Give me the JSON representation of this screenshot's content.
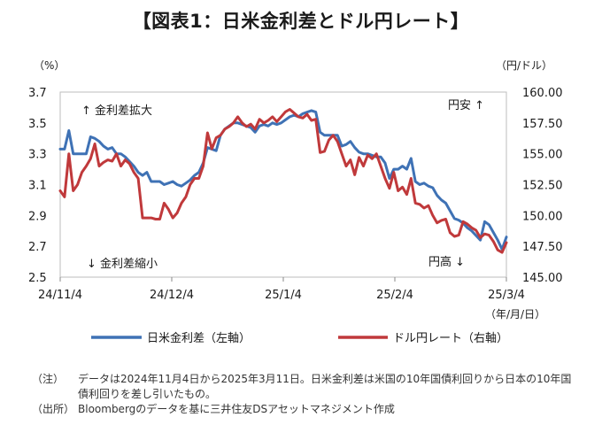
{
  "title": "【図表1：日米金利差とドル円レート】",
  "chart_data": {
    "type": "line",
    "y_left": {
      "label": "（%）",
      "min": 2.5,
      "max": 3.7,
      "ticks": [
        "2.5",
        "2.7",
        "2.9",
        "3.1",
        "3.3",
        "3.5",
        "3.7"
      ]
    },
    "y_right": {
      "label": "（円/ドル）",
      "min": 145.0,
      "max": 160.0,
      "ticks": [
        "145.00",
        "147.50",
        "150.00",
        "152.50",
        "155.00",
        "157.50",
        "160.00"
      ]
    },
    "x_ticks": [
      "24/11/4",
      "24/12/4",
      "25/1/4",
      "25/2/4",
      "25/3/4"
    ],
    "x_unit": "（年/月/日）",
    "annotations": {
      "top_left": "↑ 金利差拡大",
      "bottom_left": "↓ 金利差縮小",
      "top_right": "円安 ↑",
      "bottom_right": "円高 ↓"
    },
    "series": [
      {
        "name": "日米金利差（左軸）",
        "axis": "left",
        "color": "#3f72b5",
        "values": [
          3.33,
          3.33,
          3.45,
          3.3,
          3.3,
          3.3,
          3.3,
          3.41,
          3.4,
          3.38,
          3.35,
          3.33,
          3.34,
          3.3,
          3.3,
          3.28,
          3.25,
          3.22,
          3.18,
          3.16,
          3.18,
          3.12,
          3.12,
          3.12,
          3.1,
          3.11,
          3.12,
          3.1,
          3.09,
          3.11,
          3.13,
          3.16,
          3.18,
          3.24,
          3.34,
          3.33,
          3.32,
          3.42,
          3.46,
          3.48,
          3.5,
          3.5,
          3.49,
          3.48,
          3.47,
          3.44,
          3.48,
          3.49,
          3.48,
          3.5,
          3.49,
          3.5,
          3.52,
          3.54,
          3.55,
          3.54,
          3.56,
          3.57,
          3.58,
          3.57,
          3.44,
          3.42,
          3.42,
          3.42,
          3.42,
          3.35,
          3.36,
          3.38,
          3.34,
          3.31,
          3.3,
          3.3,
          3.29,
          3.28,
          3.28,
          3.24,
          3.14,
          3.2,
          3.2,
          3.22,
          3.2,
          3.27,
          3.12,
          3.1,
          3.11,
          3.09,
          3.08,
          3.03,
          3.0,
          2.98,
          2.93,
          2.88,
          2.87,
          2.85,
          2.82,
          2.8,
          2.77,
          2.74,
          2.86,
          2.84,
          2.79,
          2.74,
          2.68,
          2.76
        ]
      },
      {
        "name": "ドル円レート（右軸）",
        "axis": "right",
        "color": "#c0393b",
        "values": [
          152.0,
          151.5,
          155.0,
          152.0,
          152.5,
          153.5,
          154.0,
          154.6,
          155.8,
          154.0,
          154.3,
          154.5,
          154.4,
          155.0,
          154.0,
          154.5,
          154.2,
          153.5,
          153.0,
          149.8,
          149.8,
          149.8,
          149.7,
          149.7,
          151.0,
          150.5,
          149.8,
          150.2,
          151.0,
          151.5,
          152.5,
          153.0,
          153.0,
          154.0,
          156.7,
          155.4,
          156.3,
          156.5,
          157.0,
          157.2,
          157.5,
          158.0,
          157.5,
          157.2,
          157.4,
          157.0,
          157.8,
          157.5,
          157.7,
          158.0,
          157.6,
          158.0,
          158.4,
          158.6,
          158.3,
          158.0,
          157.9,
          158.2,
          157.7,
          157.8,
          155.1,
          155.2,
          156.1,
          156.5,
          156.0,
          155.0,
          154.0,
          154.5,
          153.3,
          154.7,
          154.0,
          154.9,
          154.6,
          155.0,
          154.0,
          153.0,
          152.2,
          153.5,
          152.0,
          152.3,
          151.7,
          153.0,
          151.0,
          150.9,
          150.6,
          150.8,
          150.0,
          149.4,
          149.6,
          149.7,
          148.6,
          148.3,
          148.4,
          149.5,
          149.3,
          149.0,
          148.8,
          148.2,
          148.5,
          148.4,
          147.9,
          147.2,
          147.0,
          147.8
        ]
      }
    ]
  },
  "notes": [
    {
      "tag": "（注）",
      "text": "データは2024年11月4日から2025年3月11日。日米金利差は米国の10年国債利回りから日本の10年国債利回りを差し引いたもの。"
    },
    {
      "tag": "（出所）",
      "text": "Bloombergのデータを基に三井住友DSアセットマネジメント作成"
    }
  ]
}
